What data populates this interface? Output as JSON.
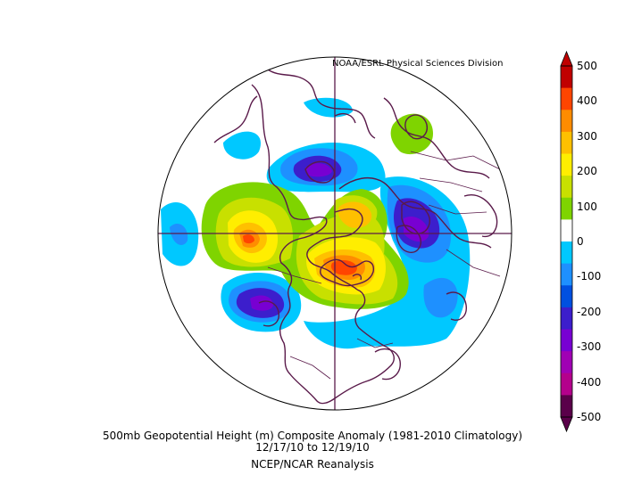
{
  "credit": "NOAA/ESRL Physical Sciences Division",
  "colorbar": {
    "labels": [
      "500",
      "400",
      "300",
      "200",
      "100",
      "0",
      "-100",
      "-200",
      "-300",
      "-400",
      "-500"
    ],
    "colors": [
      "#c00000",
      "#ff4500",
      "#ff8c00",
      "#ffc000",
      "#ffee00",
      "#c8e000",
      "#7fd400",
      "#ffffff",
      "#00c8ff",
      "#1e90ff",
      "#0050e0",
      "#3c1ecc",
      "#7800d2",
      "#a000b4",
      "#b4008c",
      "#5a004a"
    ]
  },
  "title": {
    "line1": "500mb Geopotential Height (m) Composite Anomaly (1981-2010 Climatology)",
    "line2": "12/17/10  to 12/19/10",
    "line3": "NCEP/NCAR Reanalysis"
  }
}
